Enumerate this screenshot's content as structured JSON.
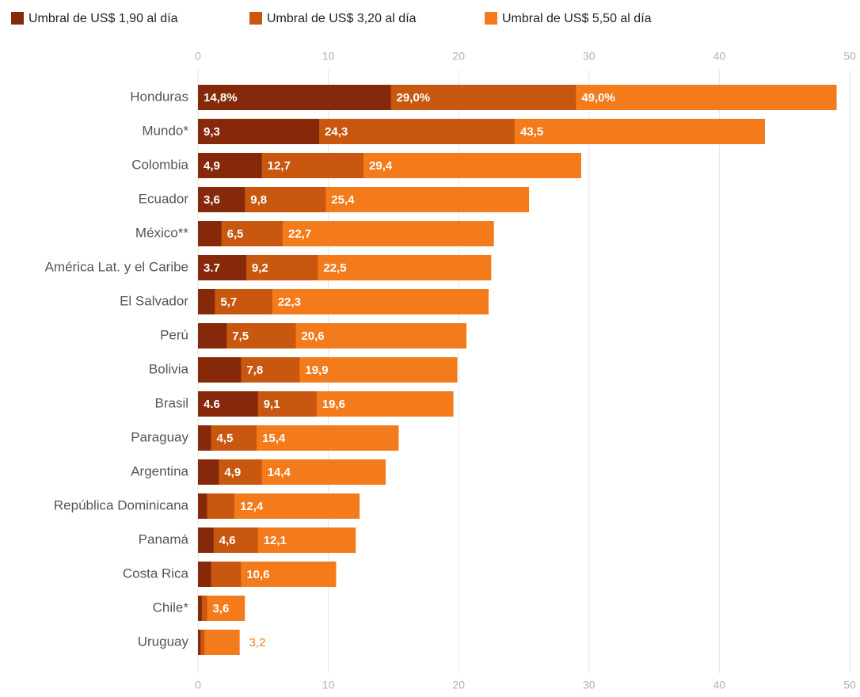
{
  "chart_data": {
    "type": "bar",
    "orientation": "horizontal",
    "overlap": true,
    "categories": [
      "Honduras",
      "Mundo*",
      "Colombia",
      "Ecuador",
      "México**",
      "América Lat. y el Caribe",
      "El Salvador",
      "Perú",
      "Bolivia",
      "Brasil",
      "Paraguay",
      "Argentina",
      "República Dominicana",
      "Panamá",
      "Costa Rica",
      "Chile*",
      "Uruguay"
    ],
    "series": [
      {
        "name": "Umbral de US$ 5,50 al día",
        "color": "#f47b1c",
        "values": [
          49.0,
          43.5,
          29.4,
          25.4,
          22.7,
          22.5,
          22.3,
          20.6,
          19.9,
          19.6,
          15.4,
          14.4,
          12.4,
          12.1,
          10.6,
          3.6,
          3.2
        ],
        "value_labels": [
          "49,0%",
          "43,5",
          "29,4",
          "25,4",
          "22,7",
          "22,5",
          "22,3",
          "20,6",
          "19,9",
          "19,6",
          "15,4",
          "14,4",
          "12,4",
          "12,1",
          "10,6",
          "3,6",
          "3,2"
        ]
      },
      {
        "name": "Umbral de US$ 3,20 al día",
        "color": "#c8570f",
        "values": [
          29.0,
          24.3,
          12.7,
          9.8,
          6.5,
          9.2,
          5.7,
          7.5,
          7.8,
          9.1,
          4.5,
          4.9,
          2.8,
          4.6,
          3.3,
          0.7,
          0.5
        ],
        "value_labels": [
          "29,0%",
          "24,3",
          "12,7",
          "9,8",
          "6,5",
          "9,2",
          "5,7",
          "7,5",
          "7,8",
          "9,1",
          "4,5",
          "4,9",
          null,
          "4,6",
          null,
          null,
          null
        ]
      },
      {
        "name": "Umbral de US$ 1,90 al día",
        "color": "#86290a",
        "values": [
          14.8,
          9.3,
          4.9,
          3.6,
          1.8,
          3.7,
          1.3,
          2.2,
          3.3,
          4.6,
          1.0,
          1.6,
          0.7,
          1.2,
          1.0,
          0.3,
          0.2
        ],
        "value_labels": [
          "14,8%",
          "9,3",
          "4,9",
          "3,6",
          null,
          "3.7",
          null,
          null,
          null,
          "4.6",
          null,
          null,
          null,
          null,
          null,
          null,
          null
        ]
      }
    ],
    "xlim": [
      0,
      50
    ],
    "xticks": [
      0,
      10,
      20,
      30,
      40,
      50
    ],
    "grid": true,
    "legend": "top-left"
  }
}
